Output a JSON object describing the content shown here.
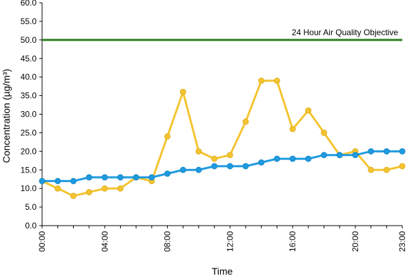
{
  "chart_data": {
    "type": "line",
    "xlabel": "Time",
    "ylabel": "Concentration (µg/m³)",
    "ylim": [
      0,
      60
    ],
    "yticks": [
      "0.0",
      "5.0",
      "10.0",
      "15.0",
      "20.0",
      "25.0",
      "30.0",
      "35.0",
      "40.0",
      "45.0",
      "50.0",
      "55.0",
      "60.0"
    ],
    "x": [
      "00:00",
      "01:00",
      "02:00",
      "03:00",
      "04:00",
      "05:00",
      "06:00",
      "07:00",
      "08:00",
      "09:00",
      "10:00",
      "11:00",
      "12:00",
      "13:00",
      "14:00",
      "15:00",
      "16:00",
      "17:00",
      "18:00",
      "19:00",
      "20:00",
      "21:00",
      "22:00",
      "23:00"
    ],
    "xtick_labels": [
      "00:00",
      "04:00",
      "08:00",
      "12:00",
      "16:00",
      "20:00",
      "23:00"
    ],
    "grid": false,
    "series": [
      {
        "color": "#f4c430",
        "values": [
          12,
          10,
          8,
          9,
          10,
          10,
          13,
          12,
          24,
          36,
          20,
          18,
          19,
          28,
          39,
          39,
          26,
          31,
          25,
          19,
          20,
          15,
          15,
          16
        ]
      },
      {
        "color": "#1e9be0",
        "values": [
          12,
          12,
          12,
          13,
          13,
          13,
          13,
          13,
          14,
          15,
          15,
          16,
          16,
          16,
          17,
          18,
          18,
          18,
          19,
          19,
          19,
          20,
          20,
          20
        ]
      }
    ],
    "objective": {
      "label": "24 Hour Air Quality Objective",
      "value": 50,
      "color": "#2e7d1e"
    }
  }
}
